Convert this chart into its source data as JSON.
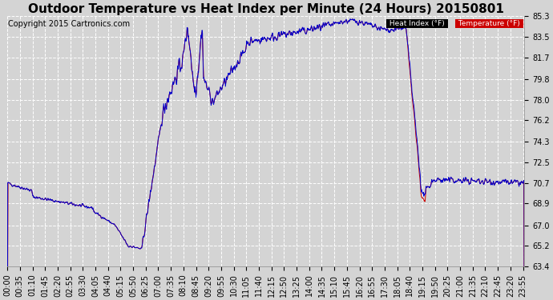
{
  "title": "Outdoor Temperature vs Heat Index per Minute (24 Hours) 20150801",
  "copyright_text": "Copyright 2015 Cartronics.com",
  "legend_labels": [
    "Heat Index (°F)",
    "Temperature (°F)"
  ],
  "legend_bg_colors": [
    "#000000",
    "#cc0000"
  ],
  "ylim_min": 63.4,
  "ylim_max": 85.3,
  "yticks": [
    63.4,
    65.2,
    67.0,
    68.9,
    70.7,
    72.5,
    74.3,
    76.2,
    78.0,
    79.8,
    81.7,
    83.5,
    85.3
  ],
  "background_color": "#d4d4d4",
  "plot_bg_color": "#d4d4d4",
  "grid_color": "#ffffff",
  "line_color_red": "#cc0000",
  "line_color_blue": "#0000cc",
  "title_fontsize": 11,
  "tick_fontsize": 7,
  "copyright_fontsize": 7
}
